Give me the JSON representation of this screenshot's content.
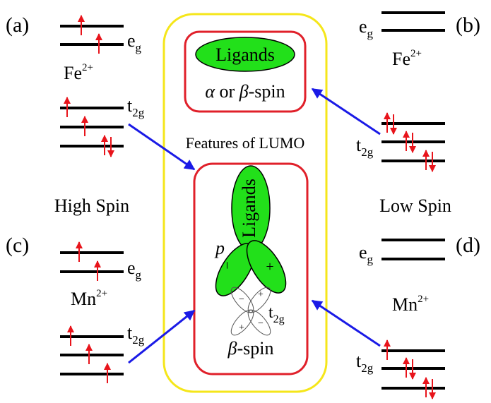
{
  "panels": [
    {
      "label": "(a)",
      "ion": "Fe",
      "charge": "2+",
      "eg": {
        "main": "e",
        "sub": "g"
      },
      "t2g": {
        "main": "t",
        "sub": "2g"
      }
    },
    {
      "label": "(b)",
      "ion": "Fe",
      "charge": "2+",
      "eg": {
        "main": "e",
        "sub": "g"
      },
      "t2g": {
        "main": "t",
        "sub": "2g"
      }
    },
    {
      "label": "(c)",
      "ion": "Mn",
      "charge": "2+",
      "eg": {
        "main": "e",
        "sub": "g"
      },
      "t2g": {
        "main": "t",
        "sub": "2g"
      }
    },
    {
      "label": "(d)",
      "ion": "Mn",
      "charge": "2+",
      "eg": {
        "main": "e",
        "sub": "g"
      },
      "t2g": {
        "main": "t",
        "sub": "2g"
      }
    }
  ],
  "spin_states": {
    "left": "High Spin",
    "right": "Low Spin"
  },
  "center": {
    "caption": "Features of LUMO",
    "top_box": {
      "ligand": "Ligands",
      "spin": [
        "α",
        " or ",
        "β",
        "-spin"
      ]
    },
    "bottom_box": {
      "ligand": "Ligands",
      "p": "p",
      "t2g": {
        "main": "t",
        "sub": "2g"
      },
      "spin": [
        "β",
        "-spin"
      ],
      "p_signs": [
        "−",
        "+"
      ],
      "t2g_signs": [
        "−",
        "+",
        "+",
        "−"
      ]
    }
  }
}
